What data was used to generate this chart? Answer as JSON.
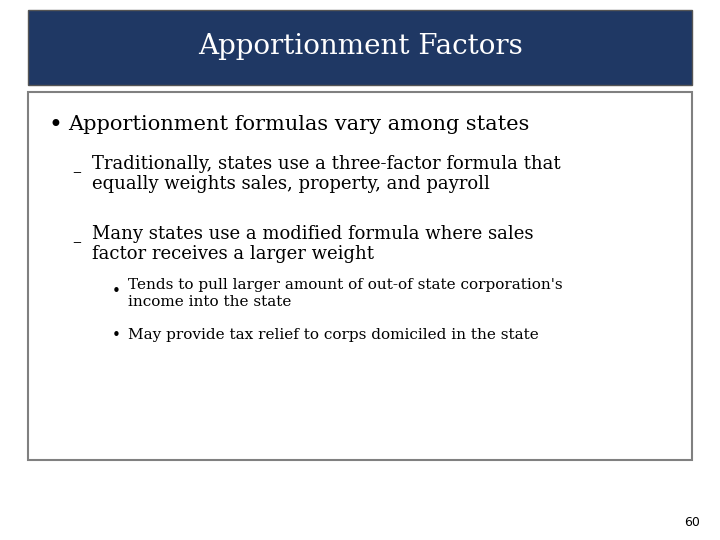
{
  "title": "Apportionment Factors",
  "title_bg_color": "#1F3864",
  "title_text_color": "#FFFFFF",
  "slide_bg_color": "#FFFFFF",
  "outer_bg_color": "#D0D0D0",
  "content_bg_color": "#FFFFFF",
  "content_border_color": "#808080",
  "text_color": "#000000",
  "page_number": "60",
  "bullet1": "Apportionment formulas vary among states",
  "sub1_line1": "Traditionally, states use a three-factor formula that",
  "sub1_line2": "equally weights sales, property, and payroll",
  "sub2_line1": "Many states use a modified formula where sales",
  "sub2_line2": "factor receives a larger weight",
  "subsub1_line1": "Tends to pull larger amount of out-of state corporation's",
  "subsub1_line2": "income into the state",
  "subsub2": "May provide tax relief to corps domiciled in the state",
  "title_fontsize": 20,
  "bullet1_fontsize": 15,
  "sub_fontsize": 13,
  "subsub_fontsize": 11
}
